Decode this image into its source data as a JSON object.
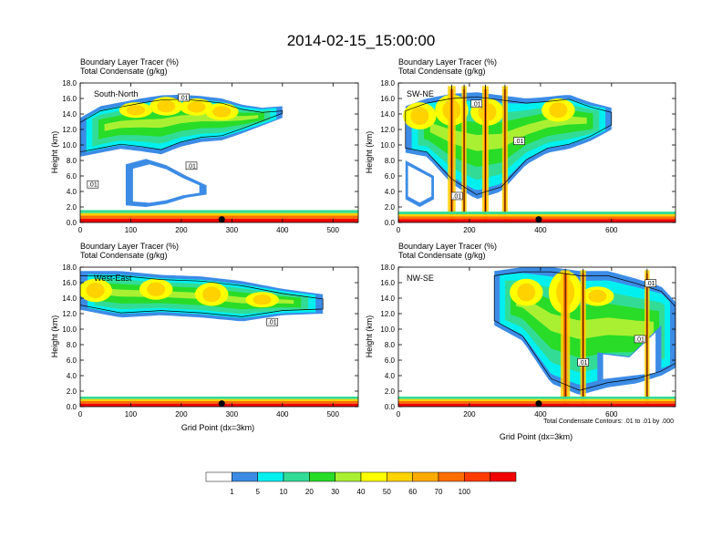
{
  "figure": {
    "title": "2014-02-15_15:00:00",
    "contour_note": "Total Condensate Contours: .01 to .01 by .000"
  },
  "colors": {
    "levels": [
      "#ffffff",
      "#3c8ce6",
      "#2db4ff",
      "#00f0f0",
      "#32dc96",
      "#28dc28",
      "#aaf032",
      "#ffff00",
      "#ffd200",
      "#ffaa00",
      "#ff6e00",
      "#ff3c00",
      "#f00000"
    ],
    "black": "#000000"
  },
  "chart_data": [
    {
      "type": "heatmap",
      "panel": "South-North",
      "header": [
        "Boundary Layer Tracer    (%)",
        "Total Condensate    (g/kg)"
      ],
      "ylabel": "Height (km)",
      "xlabel": "",
      "xlim": [
        0,
        550
      ],
      "ylim": [
        0,
        18
      ],
      "x_ticks": [
        0,
        100,
        200,
        300,
        400,
        500
      ],
      "y_ticks": [
        "0.0",
        "2.0",
        "4.0",
        "6.0",
        "8.0",
        "10.0",
        "12.0",
        "14.0",
        "16.0",
        "18.0"
      ],
      "marker_x": 280,
      "contour_labels": [
        ".01",
        ".01",
        ".01"
      ],
      "contour_label_pos": [
        [
          205,
          16
        ],
        [
          220,
          7.2
        ],
        [
          25,
          4.8
        ]
      ],
      "bl_top": 1.6,
      "cloud": [
        [
          0,
          8.5,
          13.5
        ],
        [
          40,
          9.0,
          15.0
        ],
        [
          80,
          9.5,
          15.5
        ],
        [
          120,
          9.2,
          16.0
        ],
        [
          160,
          8.8,
          16.4
        ],
        [
          200,
          9.8,
          16.5
        ],
        [
          240,
          10.4,
          16.3
        ],
        [
          280,
          10.6,
          16.0
        ],
        [
          320,
          11.5,
          15.2
        ],
        [
          360,
          12.5,
          14.8
        ],
        [
          400,
          13.5,
          15.0
        ]
      ],
      "hole": [
        [
          90,
          2.2,
          7.5
        ],
        [
          130,
          2.0,
          8.2
        ],
        [
          170,
          2.4,
          7.4
        ],
        [
          210,
          3.2,
          6.0
        ],
        [
          250,
          3.6,
          4.8
        ]
      ],
      "core": [
        [
          110,
          13.5,
          15.5
        ],
        [
          170,
          13.8,
          16.2
        ],
        [
          230,
          13.8,
          16.0
        ],
        [
          280,
          13.2,
          15.4
        ]
      ],
      "plumes": []
    },
    {
      "type": "heatmap",
      "panel": "SW-NE",
      "header": [
        "Boundary Layer Tracer    (%)",
        "Total Condensate    (g/kg)"
      ],
      "ylabel": "Height (km)",
      "xlabel": "",
      "xlim": [
        0,
        780
      ],
      "ylim": [
        0,
        18
      ],
      "x_ticks": [
        0,
        200,
        400,
        600
      ],
      "y_ticks": [
        "0.0",
        "2.0",
        "4.0",
        "6.0",
        "8.0",
        "10.0",
        "12.0",
        "14.0",
        "16.0",
        "18.0"
      ],
      "marker_x": 395,
      "contour_labels": [
        ".01",
        ".01",
        ".01"
      ],
      "contour_label_pos": [
        [
          220,
          15.2
        ],
        [
          340,
          10.4
        ],
        [
          165,
          3.3
        ]
      ],
      "bl_top": 1.4,
      "cloud": [
        [
          20,
          9.0,
          15.0
        ],
        [
          80,
          8.5,
          16.0
        ],
        [
          150,
          5.0,
          16.6
        ],
        [
          220,
          3.0,
          16.8
        ],
        [
          290,
          4.0,
          16.4
        ],
        [
          360,
          7.5,
          16.0
        ],
        [
          420,
          9.0,
          16.2
        ],
        [
          480,
          9.5,
          16.5
        ],
        [
          540,
          10.5,
          15.5
        ],
        [
          600,
          12.0,
          14.8
        ]
      ],
      "hole": [
        [
          20,
          3.0,
          8.0
        ],
        [
          60,
          2.0,
          7.0
        ],
        [
          100,
          3.0,
          6.0
        ]
      ],
      "core": [
        [
          60,
          12.0,
          15.5
        ],
        [
          150,
          12.5,
          16.5
        ],
        [
          250,
          12.5,
          16.0
        ],
        [
          450,
          13.0,
          16.0
        ]
      ],
      "plumes": [
        [
          150,
          22
        ],
        [
          185,
          14
        ],
        [
          245,
          18
        ],
        [
          300,
          16
        ]
      ]
    },
    {
      "type": "heatmap",
      "panel": "West-East",
      "header": [
        "Boundary Layer Tracer    (%)",
        "Total Condensate    (g/kg)"
      ],
      "ylabel": "Height (km)",
      "xlabel": "Grid Point (dx=3km)",
      "xlim": [
        0,
        550
      ],
      "ylim": [
        0,
        18
      ],
      "x_ticks": [
        0,
        100,
        200,
        300,
        400,
        500
      ],
      "y_ticks": [
        "0.0",
        "2.0",
        "4.0",
        "6.0",
        "8.0",
        "10.0",
        "12.0",
        "14.0",
        "16.0",
        "18.0"
      ],
      "marker_x": 280,
      "contour_labels": [
        ".01"
      ],
      "contour_label_pos": [
        [
          380,
          10.8
        ]
      ],
      "bl_top": 1.3,
      "cloud": [
        [
          0,
          12.5,
          17.5
        ],
        [
          80,
          11.5,
          17.5
        ],
        [
          160,
          11.8,
          17.0
        ],
        [
          240,
          11.5,
          16.8
        ],
        [
          320,
          11.0,
          16.2
        ],
        [
          400,
          11.8,
          15.2
        ],
        [
          480,
          12.0,
          14.5
        ]
      ],
      "hole": [],
      "core": [
        [
          30,
          13.5,
          16.5
        ],
        [
          150,
          13.8,
          16.5
        ],
        [
          260,
          13.0,
          16.0
        ],
        [
          360,
          12.8,
          14.8
        ]
      ],
      "plumes": []
    },
    {
      "type": "heatmap",
      "panel": "NW-SE",
      "header": [
        "Boundary Layer Tracer    (%)",
        "Total Condensate    (g/kg)"
      ],
      "ylabel": "Height (km)",
      "xlabel": "Grid Point (dx=3km)",
      "xlim": [
        0,
        780
      ],
      "ylim": [
        0,
        18
      ],
      "x_ticks": [
        0,
        200,
        400,
        600
      ],
      "y_ticks": [
        "0.0",
        "2.0",
        "4.0",
        "6.0",
        "8.0",
        "10.0",
        "12.0",
        "14.0",
        "16.0",
        "18.0"
      ],
      "marker_x": 395,
      "contour_labels": [
        ".01",
        ".01",
        ".01"
      ],
      "contour_label_pos": [
        [
          710,
          15.8
        ],
        [
          680,
          8.6
        ],
        [
          520,
          5.6
        ]
      ],
      "bl_top": 1.3,
      "cloud": [
        [
          270,
          10.5,
          17.5
        ],
        [
          350,
          8.5,
          18.0
        ],
        [
          430,
          3.0,
          18.0
        ],
        [
          510,
          1.5,
          17.5
        ],
        [
          590,
          2.5,
          17.5
        ],
        [
          670,
          3.0,
          16.5
        ],
        [
          740,
          4.0,
          15.5
        ],
        [
          780,
          5.0,
          13.5
        ]
      ],
      "hole": [
        [
          560,
          3.0,
          7.0
        ],
        [
          650,
          3.5,
          6.5
        ],
        [
          740,
          4.0,
          10.5
        ]
      ],
      "core": [
        [
          360,
          13.0,
          16.5
        ],
        [
          470,
          12.0,
          17.5
        ],
        [
          560,
          13.0,
          15.5
        ]
      ],
      "plumes": [
        [
          470,
          26
        ],
        [
          520,
          16
        ],
        [
          700,
          14
        ]
      ]
    }
  ],
  "colorbar": {
    "labels": [
      "1",
      "5",
      "10",
      "20",
      "30",
      "40",
      "50",
      "60",
      "70",
      "100"
    ]
  }
}
